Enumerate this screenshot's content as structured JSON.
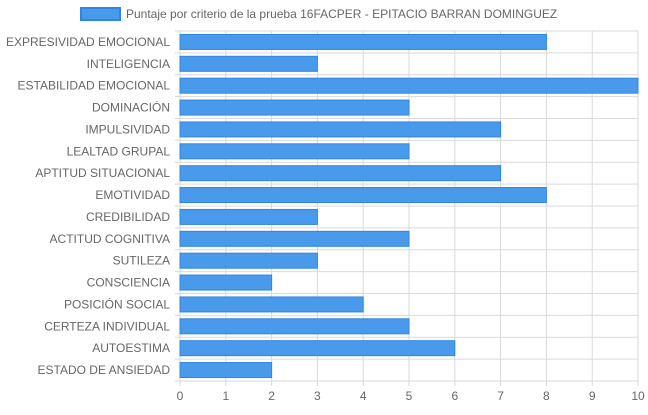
{
  "chart_data": {
    "type": "bar",
    "orientation": "horizontal",
    "categories": [
      "EXPRESIVIDAD EMOCIONAL",
      "INTELIGENCIA",
      "ESTABILIDAD EMOCIONAL",
      "DOMINACIÓN",
      "IMPULSIVIDAD",
      "LEALTAD GRUPAL",
      "APTITUD SITUACIONAL",
      "EMOTIVIDAD",
      "CREDIBILIDAD",
      "ACTITUD COGNITIVA",
      "SUTILEZA",
      "CONSCIENCIA",
      "POSICIÓN SOCIAL",
      "CERTEZA INDIVIDUAL",
      "AUTOESTIMA",
      "ESTADO DE ANSIEDAD"
    ],
    "series": [
      {
        "name": "Puntaje por criterio de la prueba 16FACPER - EPITACIO BARRAN DOMINGUEZ",
        "values": [
          8,
          3,
          10,
          5,
          7,
          5,
          7,
          8,
          3,
          5,
          3,
          2,
          4,
          5,
          6,
          2
        ]
      }
    ],
    "xlim": [
      0,
      10
    ],
    "xticks": [
      "0",
      "1",
      "2",
      "3",
      "4",
      "5",
      "6",
      "7",
      "8",
      "9",
      "10"
    ],
    "grid": true,
    "legend": "top-center",
    "colors": {
      "bar_fill": "#4a9aeb",
      "bar_stroke": "#2f86e0",
      "grid": "#d9d9d9",
      "axis_text": "#666666"
    }
  }
}
